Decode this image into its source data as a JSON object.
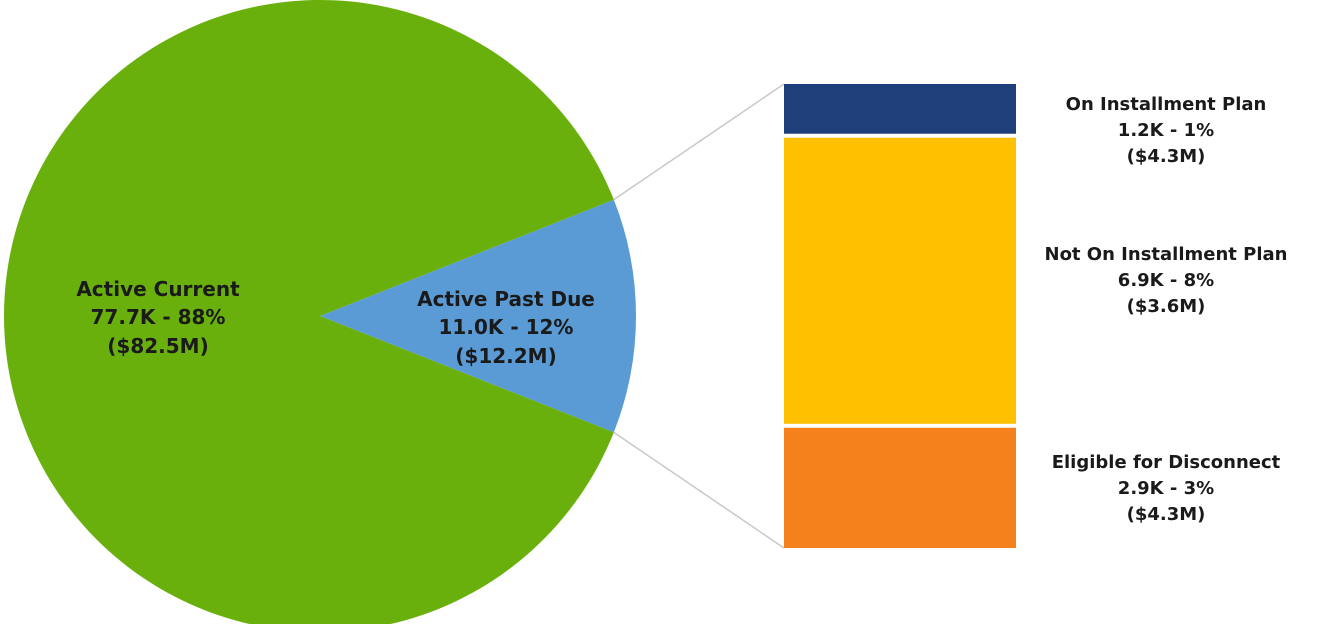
{
  "chart_data": {
    "type": "pie",
    "title": "",
    "pie": {
      "slices": [
        {
          "label": "Active Current",
          "count": "77.7K",
          "percent": 88,
          "amount": "($82.5M)",
          "color": "#6ab00c"
        },
        {
          "label": "Active Past Due",
          "count": "11.0K",
          "percent": 12,
          "amount": "($12.2M)",
          "color": "#5b9bd5",
          "exploded_to_bar": true
        }
      ]
    },
    "breakdown_bar": {
      "type": "stacked_bar",
      "parent": "Active Past Due",
      "segments": [
        {
          "label": "On Installment Plan",
          "count": "1.2K",
          "percent": 1,
          "amount": "($4.3M)",
          "color": "#1f3f7a"
        },
        {
          "label": "Not On Installment Plan",
          "count": "6.9K",
          "percent": 8,
          "amount": "($3.6M)",
          "color": "#ffc000"
        },
        {
          "label": "Eligible for Disconnect",
          "count": "2.9K",
          "percent": 3,
          "amount": "($4.3M)",
          "color": "#f4811c"
        }
      ]
    }
  }
}
